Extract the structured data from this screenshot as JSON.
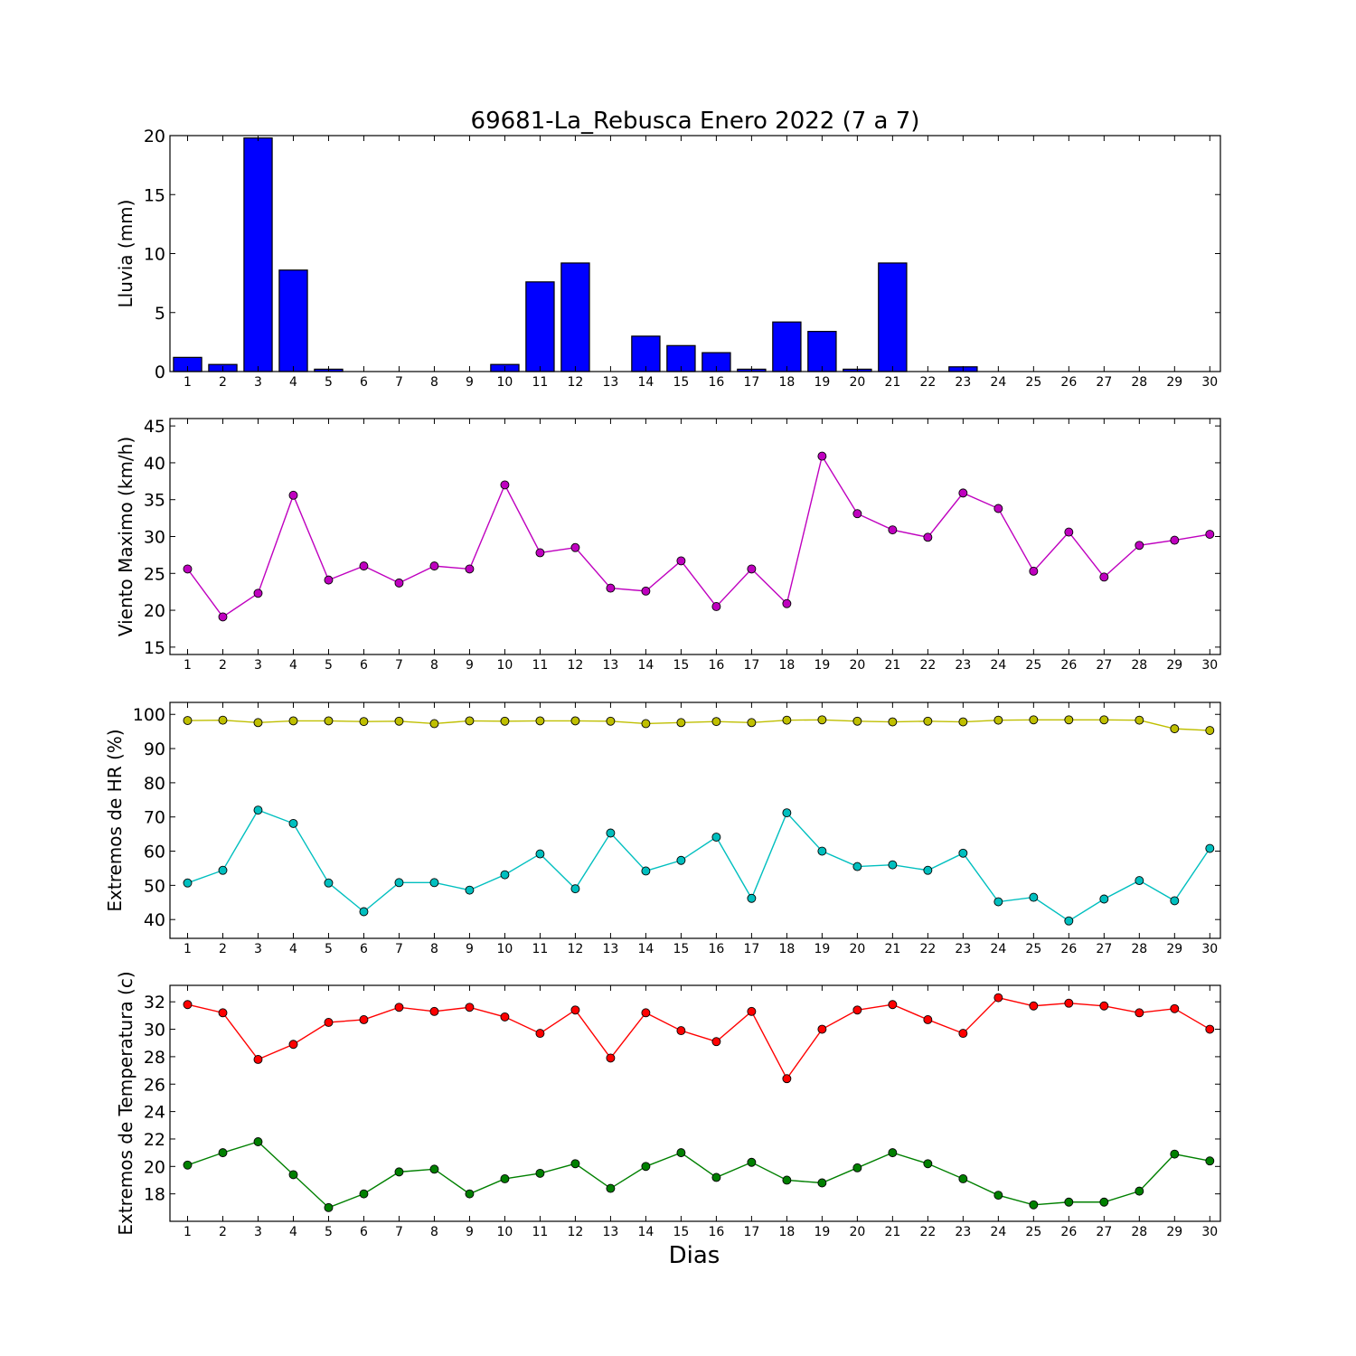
{
  "title": "69681-La_Rebusca Enero 2022  (7 a 7)",
  "xlabel": "Dias",
  "chart_data": [
    {
      "type": "bar",
      "ylabel": "Lluvia (mm)",
      "x": [
        1,
        2,
        3,
        4,
        5,
        6,
        7,
        8,
        9,
        10,
        11,
        12,
        13,
        14,
        15,
        16,
        17,
        18,
        19,
        20,
        21,
        22,
        23,
        24,
        25,
        26,
        27,
        28,
        29,
        30
      ],
      "ylim": [
        0,
        20
      ],
      "yticks": [
        0,
        5,
        10,
        15,
        20
      ],
      "series": [
        {
          "color": "#0000ff",
          "values": [
            1.2,
            0.6,
            19.8,
            8.6,
            0.2,
            0,
            0,
            0,
            0,
            0.6,
            7.6,
            9.2,
            0,
            3.0,
            2.2,
            1.6,
            0.2,
            4.2,
            3.4,
            0.2,
            9.2,
            0,
            0.4,
            0,
            0,
            0,
            0,
            0,
            0,
            0
          ]
        }
      ]
    },
    {
      "type": "line",
      "ylabel": "Viento Maximo (km/h)",
      "x": [
        1,
        2,
        3,
        4,
        5,
        6,
        7,
        8,
        9,
        10,
        11,
        12,
        13,
        14,
        15,
        16,
        17,
        18,
        19,
        20,
        21,
        22,
        23,
        24,
        25,
        26,
        27,
        28,
        29,
        30
      ],
      "ylim": [
        14,
        46
      ],
      "yticks": [
        15,
        20,
        25,
        30,
        35,
        40,
        45
      ],
      "series": [
        {
          "color": "#bf00bf",
          "values": [
            25.6,
            19.1,
            22.3,
            35.6,
            24.1,
            26.0,
            23.7,
            26.0,
            25.6,
            37.0,
            27.8,
            28.5,
            23.0,
            22.6,
            26.7,
            20.5,
            25.6,
            20.9,
            40.9,
            33.1,
            30.9,
            29.9,
            35.9,
            33.8,
            25.3,
            30.6,
            24.5,
            28.8,
            29.5,
            30.3
          ]
        }
      ]
    },
    {
      "type": "line",
      "ylabel": "Extremos de HR (%)",
      "x": [
        1,
        2,
        3,
        4,
        5,
        6,
        7,
        8,
        9,
        10,
        11,
        12,
        13,
        14,
        15,
        16,
        17,
        18,
        19,
        20,
        21,
        22,
        23,
        24,
        25,
        26,
        27,
        28,
        29,
        30
      ],
      "ylim": [
        34.5,
        103.5
      ],
      "yticks": [
        40,
        50,
        60,
        70,
        80,
        90,
        100
      ],
      "series": [
        {
          "color": "#bfbf00",
          "values": [
            98.2,
            98.3,
            97.6,
            98.1,
            98.1,
            97.9,
            98.0,
            97.3,
            98.1,
            98.0,
            98.1,
            98.1,
            98.0,
            97.3,
            97.6,
            97.9,
            97.6,
            98.3,
            98.4,
            98.0,
            97.8,
            98.0,
            97.8,
            98.3,
            98.4,
            98.4,
            98.4,
            98.3,
            95.8,
            95.3
          ]
        },
        {
          "color": "#00bfbf",
          "values": [
            50.7,
            54.4,
            72.0,
            68.1,
            50.7,
            42.3,
            50.8,
            50.8,
            48.6,
            53.1,
            59.2,
            49.0,
            65.3,
            54.2,
            57.3,
            64.1,
            46.2,
            71.2,
            60.0,
            55.5,
            56.0,
            54.4,
            59.4,
            45.2,
            46.5,
            39.6,
            46.0,
            51.4,
            45.5,
            60.8
          ]
        }
      ]
    },
    {
      "type": "line",
      "ylabel": "Extremos de Temperatura (c)",
      "x": [
        1,
        2,
        3,
        4,
        5,
        6,
        7,
        8,
        9,
        10,
        11,
        12,
        13,
        14,
        15,
        16,
        17,
        18,
        19,
        20,
        21,
        22,
        23,
        24,
        25,
        26,
        27,
        28,
        29,
        30
      ],
      "ylim": [
        16,
        33.2
      ],
      "yticks": [
        18,
        20,
        22,
        24,
        26,
        28,
        30,
        32
      ],
      "series": [
        {
          "color": "#ff0000",
          "values": [
            31.8,
            31.2,
            27.8,
            28.9,
            30.5,
            30.7,
            31.6,
            31.3,
            31.6,
            30.9,
            29.7,
            31.4,
            27.9,
            31.2,
            29.9,
            29.1,
            31.3,
            26.4,
            30.0,
            31.4,
            31.8,
            30.7,
            29.7,
            32.3,
            31.7,
            31.9,
            31.7,
            31.2,
            31.5,
            30.0
          ]
        },
        {
          "color": "#008000",
          "values": [
            20.1,
            21.0,
            21.8,
            19.4,
            17.0,
            18.0,
            19.6,
            19.8,
            18.0,
            19.1,
            19.5,
            20.2,
            18.4,
            20.0,
            21.0,
            19.2,
            20.3,
            19.0,
            18.8,
            19.9,
            21.0,
            20.2,
            19.1,
            17.9,
            17.2,
            17.4,
            17.4,
            18.2,
            20.9,
            20.4
          ]
        }
      ]
    }
  ]
}
